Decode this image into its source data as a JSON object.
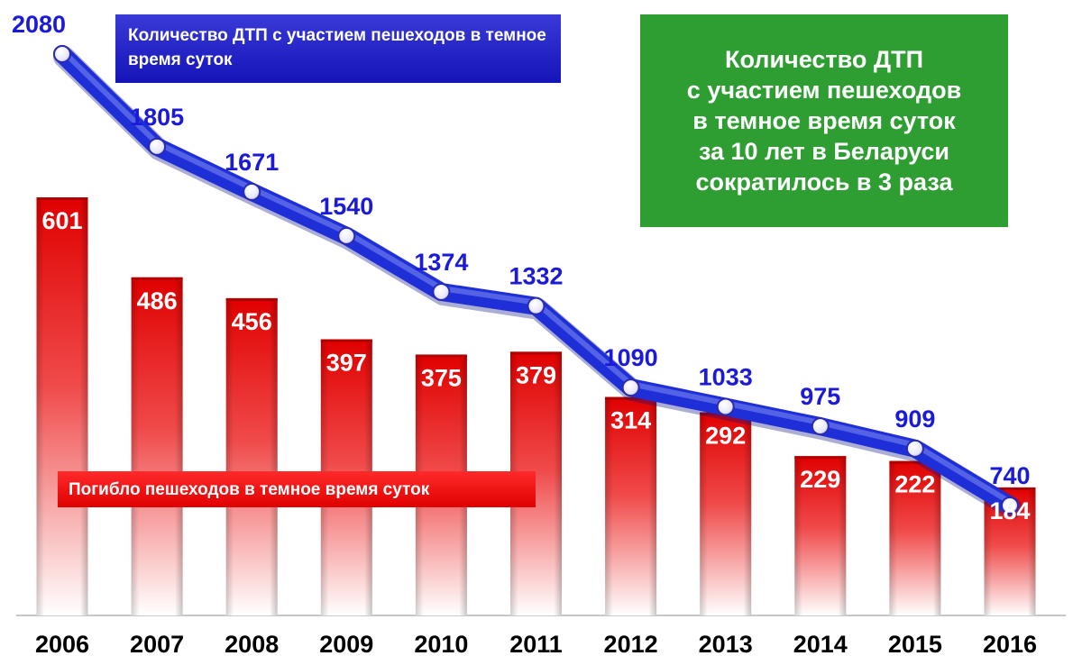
{
  "chart_data": {
    "type": "bar+line",
    "categories": [
      "2006",
      "2007",
      "2008",
      "2009",
      "2010",
      "2011",
      "2012",
      "2013",
      "2014",
      "2015",
      "2016"
    ],
    "series": [
      {
        "name": "Погибло пешеходов в темное время суток",
        "type": "bar",
        "color": "#e01010",
        "values": [
          601,
          486,
          456,
          397,
          375,
          379,
          314,
          292,
          229,
          222,
          184
        ],
        "labels": [
          "601",
          "486",
          "456",
          "397",
          "375",
          "379",
          "314",
          "292",
          "229",
          "222",
          "184"
        ]
      },
      {
        "name": "Количество ДТП с участием пешеходов в темное время суток",
        "type": "line",
        "color": "#1f2fd8",
        "values": [
          2080,
          1805,
          1671,
          1540,
          1374,
          1332,
          1090,
          1033,
          975,
          909,
          740
        ],
        "labels": [
          "2080",
          "1805",
          "1671",
          "1540",
          "1374",
          "1332",
          "1090",
          "1033",
          "975",
          "909",
          "740"
        ]
      }
    ],
    "headline": "Количество ДТП с участием пешеходов в темное время суток за 10 лет в Беларуси сократилось в 3 раза"
  },
  "legend": {
    "line": "Количество ДТП с участием пешеходов в темное время суток",
    "bars": "Погибло пешеходов в темное время суток"
  },
  "headline_lines": [
    "Количество ДТП",
    "с участием пешеходов",
    "в темное время суток",
    "за 10 лет в Беларуси",
    "сократилось в 3 раза"
  ],
  "colors": {
    "bar": "#e01010",
    "line": "#1f2fd8",
    "line_label": "#1a1ad8",
    "headline_box": "#2e9d32"
  }
}
